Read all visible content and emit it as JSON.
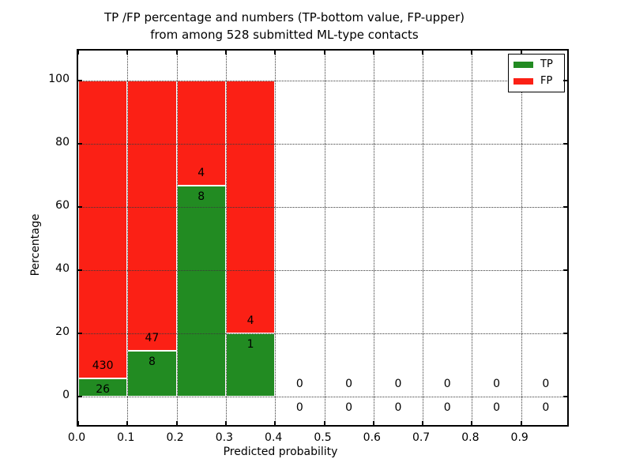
{
  "title": {
    "line1": "TP /FP percentage and numbers (TP-bottom value, FP-upper)",
    "line2": "from among 528 submitted ML-type contacts"
  },
  "chart_data": {
    "type": "bar",
    "stacked": true,
    "normalized": "percent",
    "title": "TP /FP percentage and numbers (TP-bottom value, FP-upper) from among 528 submitted ML-type contacts",
    "xlabel": "Predicted probability",
    "ylabel": "Percentage",
    "total_contacts": 528,
    "bin_edges": [
      0.0,
      0.1,
      0.2,
      0.3,
      0.4,
      0.5,
      0.6,
      0.7,
      0.8,
      0.9,
      1.0
    ],
    "series": [
      {
        "name": "TP",
        "color": "#228b22",
        "counts": [
          26,
          8,
          8,
          1,
          0,
          0,
          0,
          0,
          0,
          0
        ]
      },
      {
        "name": "FP",
        "color": "#fb2015",
        "counts": [
          430,
          47,
          4,
          4,
          0,
          0,
          0,
          0,
          0,
          0
        ]
      }
    ],
    "tp_percent_by_bin": [
      5.7,
      14.5,
      66.7,
      20.0,
      0,
      0,
      0,
      0,
      0,
      0
    ],
    "xticks": [
      "0.0",
      "0.1",
      "0.2",
      "0.3",
      "0.4",
      "0.5",
      "0.6",
      "0.7",
      "0.8",
      "0.9"
    ],
    "yticks": [
      0,
      20,
      40,
      60,
      80,
      100
    ],
    "xlim": [
      0.0,
      1.0
    ],
    "ylim": [
      -10,
      110
    ],
    "grid": "dotted",
    "legend": {
      "position": "upper right",
      "entries": [
        {
          "label": "TP",
          "color": "#228b22"
        },
        {
          "label": "FP",
          "color": "#fb2015"
        }
      ]
    }
  }
}
